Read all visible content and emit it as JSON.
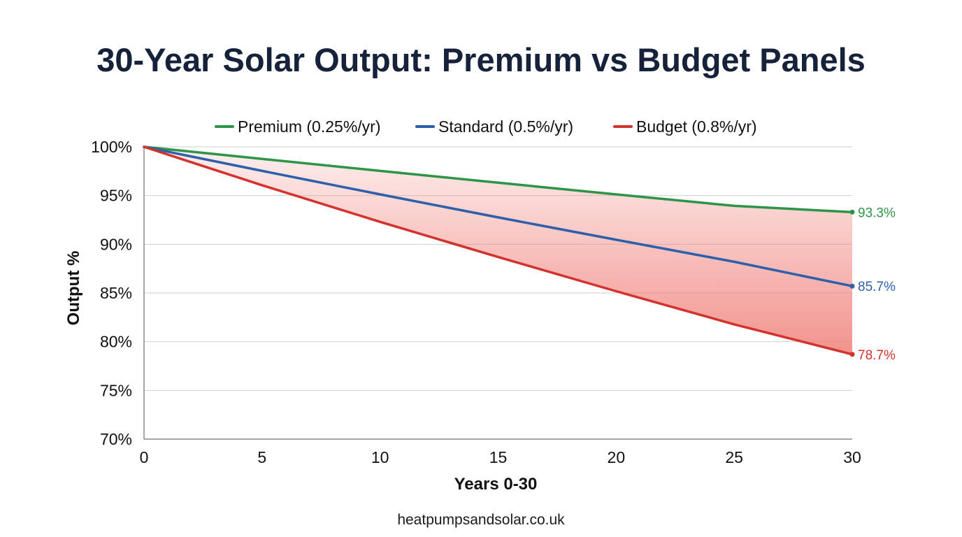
{
  "footer": {
    "source_text": "heatpumpsandsolar.co.uk"
  },
  "colors": {
    "premium": "#2e9447",
    "standard": "#2d5fab",
    "budget": "#d4322e",
    "title": "#16213a",
    "grid": "#cfcfcf",
    "fill": "#f07f78"
  },
  "chart_data": {
    "type": "line",
    "title": "30-Year Solar Output: Premium vs Budget Panels",
    "xlabel": "Years 0-30",
    "ylabel": "Output %",
    "x": [
      0,
      5,
      10,
      15,
      20,
      25,
      30
    ],
    "xlim": [
      0,
      30
    ],
    "ylim": [
      70,
      100
    ],
    "x_ticks": [
      "0",
      "5",
      "10",
      "15",
      "20",
      "25",
      "30"
    ],
    "y_ticks": [
      "100%",
      "95%",
      "90%",
      "85%",
      "80%",
      "75%",
      "70%"
    ],
    "y_tick_values": [
      100,
      95,
      90,
      85,
      80,
      75,
      70
    ],
    "grid": true,
    "legend_position": "top-center",
    "shaded_area": "between Premium and Budget",
    "series": [
      {
        "name": "Premium (0.25%/yr)",
        "color": "#2e9447",
        "values": [
          100,
          98.76,
          97.53,
          96.32,
          95.12,
          93.94,
          93.3
        ],
        "end_label": "93.3%"
      },
      {
        "name": "Standard (0.5%/yr)",
        "color": "#2d5fab",
        "values": [
          100,
          97.53,
          95.12,
          92.76,
          90.46,
          88.2,
          85.7
        ],
        "end_label": "85.7%"
      },
      {
        "name": "Budget (0.8%/yr)",
        "color": "#d4322e",
        "values": [
          100,
          96.06,
          92.3,
          88.69,
          85.18,
          81.78,
          78.7
        ],
        "end_label": "78.7%"
      }
    ]
  }
}
